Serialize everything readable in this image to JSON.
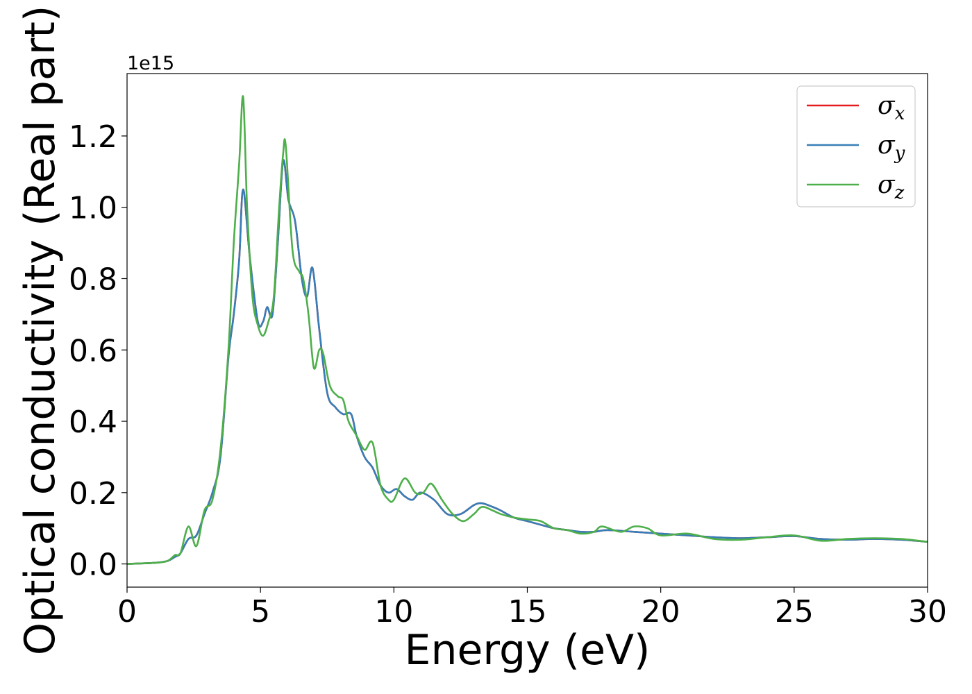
{
  "chart_data": {
    "type": "line",
    "title": "",
    "xlabel": "Energy (eV)",
    "ylabel": "Optical conductivity (Real part)",
    "y_offset_text": "1e15",
    "xlim": [
      0,
      30
    ],
    "ylim": [
      -0.065,
      1.375
    ],
    "xticks": [
      0,
      5,
      10,
      15,
      20,
      25,
      30
    ],
    "xtick_labels": [
      "0",
      "5",
      "10",
      "15",
      "20",
      "25",
      "30"
    ],
    "yticks": [
      0.0,
      0.2,
      0.4,
      0.6,
      0.8,
      1.0,
      1.2
    ],
    "ytick_labels": [
      "0.0",
      "0.2",
      "0.4",
      "0.6",
      "0.8",
      "1.0",
      "1.2"
    ],
    "grid": false,
    "legend_position": "top-right",
    "series": [
      {
        "name": "σx",
        "symbol": "σ",
        "subscript": "x",
        "color": "#e41a1c",
        "x": [
          0,
          1,
          1.5,
          1.8,
          2.0,
          2.3,
          2.6,
          2.9,
          3.2,
          3.5,
          3.8,
          4.0,
          4.2,
          4.35,
          4.6,
          4.9,
          5.1,
          5.25,
          5.45,
          5.65,
          5.85,
          6.05,
          6.3,
          6.55,
          6.75,
          6.95,
          7.2,
          7.5,
          7.8,
          8.1,
          8.4,
          8.6,
          8.9,
          9.2,
          9.5,
          9.8,
          10.1,
          10.4,
          10.7,
          11.0,
          11.5,
          12.0,
          12.5,
          13.0,
          13.3,
          13.7,
          14.0,
          14.5,
          15.0,
          15.5,
          16.0,
          16.5,
          17.0,
          17.5,
          18.0,
          19.0,
          20.0,
          21.0,
          22.0,
          23.0,
          24.0,
          25.0,
          26.0,
          27.0,
          28.0,
          29.0,
          30.0
        ],
        "values": [
          0.0,
          0.003,
          0.008,
          0.02,
          0.03,
          0.07,
          0.08,
          0.14,
          0.2,
          0.3,
          0.58,
          0.7,
          0.85,
          1.05,
          0.86,
          0.68,
          0.68,
          0.72,
          0.7,
          0.9,
          1.13,
          1.02,
          0.96,
          0.8,
          0.75,
          0.83,
          0.66,
          0.48,
          0.44,
          0.42,
          0.42,
          0.36,
          0.3,
          0.27,
          0.22,
          0.2,
          0.21,
          0.19,
          0.18,
          0.2,
          0.18,
          0.14,
          0.14,
          0.165,
          0.17,
          0.16,
          0.15,
          0.13,
          0.12,
          0.11,
          0.1,
          0.095,
          0.09,
          0.09,
          0.095,
          0.09,
          0.085,
          0.08,
          0.075,
          0.072,
          0.075,
          0.078,
          0.07,
          0.068,
          0.07,
          0.068,
          0.062
        ]
      },
      {
        "name": "σy",
        "symbol": "σ",
        "subscript": "y",
        "color": "#377eb8",
        "x": [
          0,
          1,
          1.5,
          1.8,
          2.0,
          2.3,
          2.6,
          2.9,
          3.2,
          3.5,
          3.8,
          4.0,
          4.2,
          4.35,
          4.6,
          4.9,
          5.1,
          5.25,
          5.45,
          5.65,
          5.85,
          6.05,
          6.3,
          6.55,
          6.75,
          6.95,
          7.2,
          7.5,
          7.8,
          8.1,
          8.4,
          8.6,
          8.9,
          9.2,
          9.5,
          9.8,
          10.1,
          10.4,
          10.7,
          11.0,
          11.5,
          12.0,
          12.5,
          13.0,
          13.3,
          13.7,
          14.0,
          14.5,
          15.0,
          15.5,
          16.0,
          16.5,
          17.0,
          17.5,
          18.0,
          19.0,
          20.0,
          21.0,
          22.0,
          23.0,
          24.0,
          25.0,
          26.0,
          27.0,
          28.0,
          29.0,
          30.0
        ],
        "values": [
          0.0,
          0.003,
          0.008,
          0.02,
          0.03,
          0.07,
          0.08,
          0.14,
          0.2,
          0.3,
          0.58,
          0.7,
          0.85,
          1.05,
          0.86,
          0.68,
          0.68,
          0.72,
          0.7,
          0.9,
          1.13,
          1.02,
          0.96,
          0.8,
          0.75,
          0.83,
          0.66,
          0.48,
          0.44,
          0.42,
          0.42,
          0.36,
          0.3,
          0.27,
          0.22,
          0.2,
          0.21,
          0.19,
          0.18,
          0.2,
          0.18,
          0.14,
          0.14,
          0.165,
          0.17,
          0.16,
          0.15,
          0.13,
          0.12,
          0.11,
          0.1,
          0.095,
          0.09,
          0.09,
          0.095,
          0.09,
          0.085,
          0.08,
          0.075,
          0.072,
          0.075,
          0.078,
          0.07,
          0.068,
          0.07,
          0.068,
          0.062
        ]
      },
      {
        "name": "σz",
        "symbol": "σ",
        "subscript": "z",
        "color": "#4daf4a",
        "x": [
          0,
          1,
          1.5,
          1.8,
          2.0,
          2.3,
          2.6,
          2.9,
          3.2,
          3.5,
          3.8,
          4.0,
          4.2,
          4.35,
          4.5,
          4.7,
          4.9,
          5.1,
          5.3,
          5.5,
          5.7,
          5.85,
          5.95,
          6.2,
          6.45,
          6.6,
          6.8,
          7.0,
          7.2,
          7.35,
          7.6,
          7.9,
          8.1,
          8.3,
          8.6,
          8.9,
          9.2,
          9.5,
          9.8,
          10.0,
          10.4,
          10.8,
          11.1,
          11.4,
          11.8,
          12.2,
          12.6,
          13.0,
          13.3,
          13.7,
          14.0,
          14.5,
          15.0,
          15.5,
          16.0,
          16.5,
          17.0,
          17.5,
          17.8,
          18.5,
          19.0,
          19.5,
          20.0,
          21.0,
          22.0,
          23.0,
          24.0,
          25.0,
          26.0,
          27.0,
          28.0,
          29.0,
          30.0
        ],
        "values": [
          0.0,
          0.003,
          0.008,
          0.025,
          0.03,
          0.105,
          0.05,
          0.15,
          0.18,
          0.32,
          0.6,
          0.9,
          1.12,
          1.31,
          1.0,
          0.75,
          0.67,
          0.64,
          0.68,
          0.75,
          1.0,
          1.15,
          1.17,
          0.88,
          0.82,
          0.8,
          0.7,
          0.55,
          0.6,
          0.59,
          0.5,
          0.47,
          0.46,
          0.4,
          0.36,
          0.32,
          0.34,
          0.22,
          0.18,
          0.18,
          0.24,
          0.2,
          0.2,
          0.225,
          0.18,
          0.14,
          0.12,
          0.14,
          0.16,
          0.15,
          0.14,
          0.13,
          0.125,
          0.12,
          0.1,
          0.095,
          0.085,
          0.09,
          0.105,
          0.09,
          0.105,
          0.1,
          0.08,
          0.085,
          0.07,
          0.068,
          0.075,
          0.08,
          0.065,
          0.07,
          0.072,
          0.07,
          0.062
        ]
      }
    ]
  }
}
